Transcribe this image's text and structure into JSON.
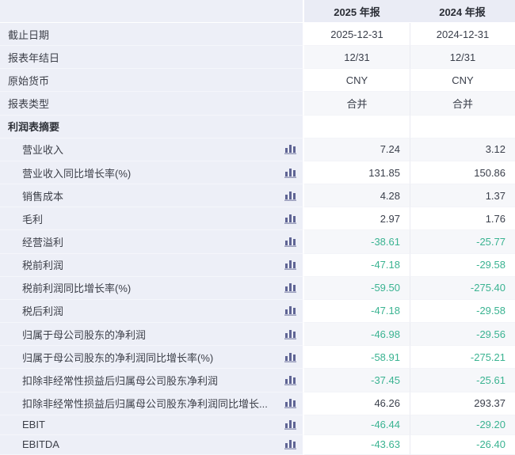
{
  "table": {
    "header": {
      "label_column": "",
      "columns": [
        "2025 年报",
        "2024 年报"
      ]
    },
    "rows": [
      {
        "label": "截止日期",
        "type": "info",
        "values": [
          "2025-12-31",
          "2024-12-31"
        ]
      },
      {
        "label": "报表年结日",
        "type": "info",
        "values": [
          "12/31",
          "12/31"
        ]
      },
      {
        "label": "原始货币",
        "type": "info",
        "values": [
          "CNY",
          "CNY"
        ]
      },
      {
        "label": "报表类型",
        "type": "info",
        "values": [
          "合并",
          "合并"
        ]
      },
      {
        "label": "利润表摘要",
        "type": "section",
        "values": [
          "",
          ""
        ]
      },
      {
        "label": "营业收入",
        "type": "metric",
        "values": [
          "7.24",
          "3.12"
        ]
      },
      {
        "label": "营业收入同比增长率(%)",
        "type": "metric",
        "values": [
          "131.85",
          "150.86"
        ]
      },
      {
        "label": "销售成本",
        "type": "metric",
        "values": [
          "4.28",
          "1.37"
        ]
      },
      {
        "label": "毛利",
        "type": "metric",
        "values": [
          "2.97",
          "1.76"
        ]
      },
      {
        "label": "经营溢利",
        "type": "metric",
        "values": [
          "-38.61",
          "-25.77"
        ]
      },
      {
        "label": "税前利润",
        "type": "metric",
        "values": [
          "-47.18",
          "-29.58"
        ]
      },
      {
        "label": "税前利润同比增长率(%)",
        "type": "metric",
        "values": [
          "-59.50",
          "-275.40"
        ]
      },
      {
        "label": "税后利润",
        "type": "metric",
        "values": [
          "-47.18",
          "-29.58"
        ]
      },
      {
        "label": "归属于母公司股东的净利润",
        "type": "metric",
        "values": [
          "-46.98",
          "-29.56"
        ]
      },
      {
        "label": "归属于母公司股东的净利润同比增长率(%)",
        "type": "metric",
        "values": [
          "-58.91",
          "-275.21"
        ]
      },
      {
        "label": "扣除非经常性损益后归属母公司股东净利润",
        "type": "metric",
        "values": [
          "-37.45",
          "-25.61"
        ]
      },
      {
        "label": "扣除非经常性损益后归属母公司股东净利润同比增长...",
        "type": "metric",
        "values": [
          "46.26",
          "293.37"
        ]
      },
      {
        "label": "EBIT",
        "type": "metric",
        "values": [
          "-46.44",
          "-29.20"
        ]
      },
      {
        "label": "EBITDA",
        "type": "metric",
        "values": [
          "-43.63",
          "-26.40"
        ]
      }
    ],
    "icons": {
      "metric_icon": "bar-chart-icon"
    },
    "colors": {
      "negative_value": "#3ab391",
      "label_column_bg": "#edeff7",
      "stripe_bg": "#f6f7fa",
      "header_bg": "#eaecf5",
      "icon_color": "#5f6494",
      "text_color": "#3c3f48"
    }
  }
}
